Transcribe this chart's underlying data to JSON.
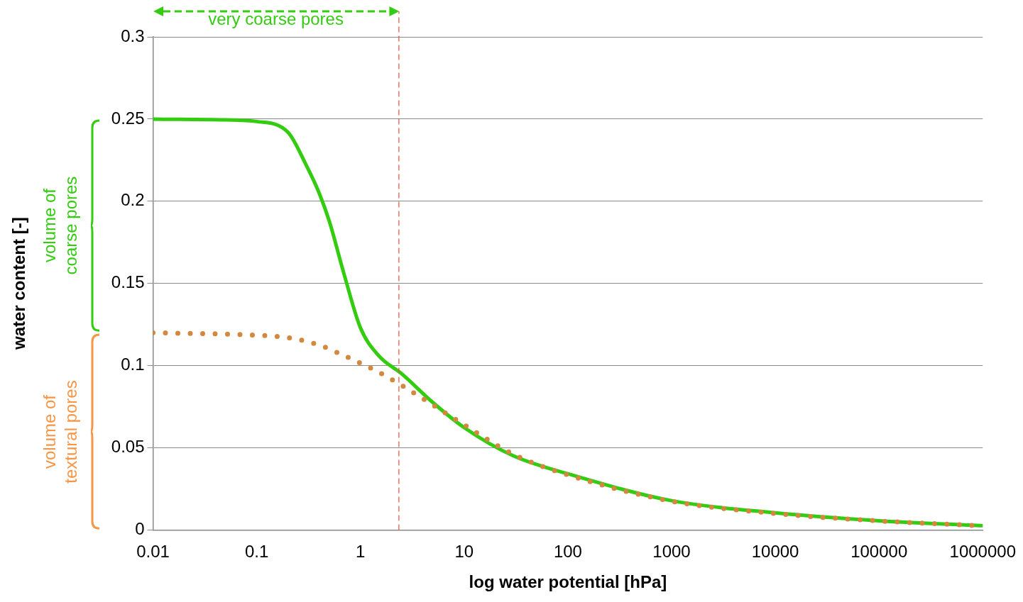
{
  "chart_data": {
    "type": "line",
    "xlabel": "log water potential [hPa]",
    "ylabel": "water content [-]",
    "log": "x",
    "grid": "y",
    "legend": false,
    "marker": "none",
    "xlim": [
      0.01,
      1000000
    ],
    "xticks": [
      0.01,
      0.1,
      1,
      10,
      100,
      1000,
      10000,
      100000,
      1000000
    ],
    "ylim": [
      0,
      0.3
    ],
    "yticks": [
      0,
      0.05,
      0.1,
      0.15,
      0.2,
      0.25,
      0.3
    ],
    "series": [
      {
        "color": "#d4883f",
        "line_style": "dotted",
        "x": [
          0.01,
          0.1,
          0.2,
          0.4,
          0.7,
          1,
          1.5,
          2.5,
          5,
          10,
          30,
          100,
          1000,
          10000,
          100000,
          1000000
        ],
        "values": [
          0.12,
          0.1185,
          0.117,
          0.1125,
          0.106,
          0.1015,
          0.096,
          0.088,
          0.076,
          0.064,
          0.046,
          0.0335,
          0.0175,
          0.01,
          0.0055,
          0.0025
        ]
      },
      {
        "color": "#33cc11",
        "line_style": "solid",
        "x": [
          0.01,
          0.05,
          0.1,
          0.2,
          0.3,
          0.4,
          0.5,
          0.7,
          1,
          1.5,
          2.5,
          5,
          10,
          30,
          100,
          1000,
          10000,
          100000,
          1000000
        ],
        "values": [
          0.25,
          0.2495,
          0.2485,
          0.242,
          0.222,
          0.205,
          0.188,
          0.155,
          0.123,
          0.106,
          0.095,
          0.0775,
          0.0623,
          0.045,
          0.0342,
          0.0178,
          0.0104,
          0.0056,
          0.0026
        ]
      }
    ],
    "ref_lines": [
      {
        "axis": "x",
        "value": 2.35,
        "color": "#e8503a",
        "line_style": "dashed"
      }
    ],
    "annotations": [
      "very coarse pores",
      "volume of coarse pores",
      "volume of textural pores"
    ]
  }
}
